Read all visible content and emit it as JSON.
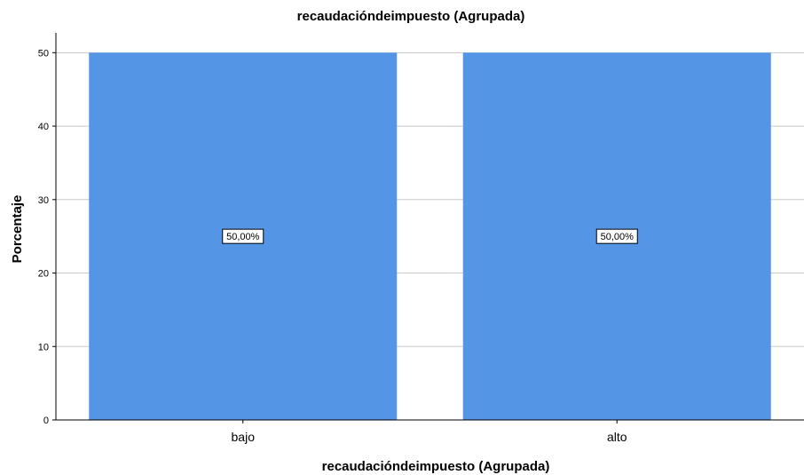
{
  "chart_data": {
    "type": "bar",
    "title": "recaudacióndeimpuesto (Agrupada)",
    "xlabel": "recaudacióndeimpuesto (Agrupada)",
    "ylabel": "Porcentaje",
    "categories": [
      "bajo",
      "alto"
    ],
    "values": [
      50,
      50
    ],
    "data_labels": [
      "50,00%",
      "50,00%"
    ],
    "ylim": [
      0,
      52.7
    ],
    "yticks": [
      0,
      10,
      20,
      30,
      40,
      50
    ],
    "grid": true,
    "bar_color": "#5595e5",
    "grid_color": "#c8c8c8"
  }
}
